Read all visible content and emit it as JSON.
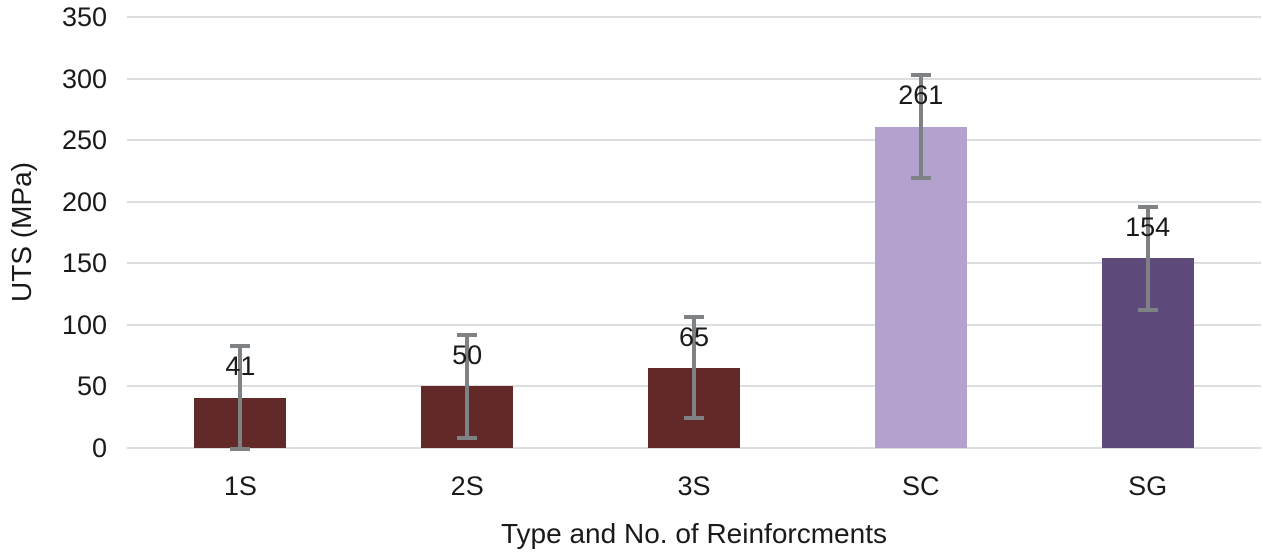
{
  "chart_data": {
    "type": "bar",
    "title": "",
    "categories": [
      "1S",
      "2S",
      "3S",
      "SC",
      "SG"
    ],
    "values": [
      41,
      50,
      65,
      261,
      154
    ],
    "data_labels": [
      "41",
      "50",
      "65",
      "261",
      "154"
    ],
    "errors": [
      42,
      42,
      41,
      42,
      42
    ],
    "bar_colors": [
      "#632928",
      "#632928",
      "#632928",
      "#b3a2ce",
      "#5e4a7b"
    ],
    "xlabel": "Type and No. of Reinforcments",
    "ylabel": "UTS (MPa)",
    "ylim": [
      0,
      350
    ],
    "ytick_step": 50,
    "yticks": [
      "0",
      "50",
      "100",
      "150",
      "200",
      "250",
      "300",
      "350"
    ],
    "grid": "horizontal gridlines only, no axis lines, no legend",
    "gridline_color": "#dcdee0",
    "error_bar_color": "#7f8285",
    "text_color": "#1a1a1a",
    "background": "#ffffff"
  }
}
